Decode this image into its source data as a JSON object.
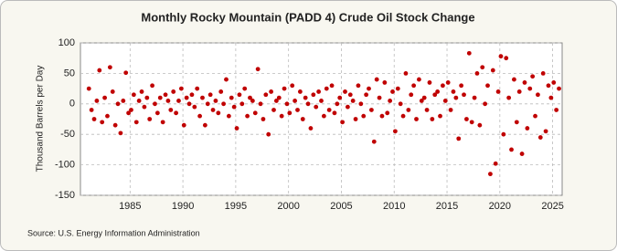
{
  "chart_data": {
    "type": "scatter",
    "title": "Monthly Rocky Mountain (PADD 4) Crude Oil Stock Change",
    "y_label": "Thousand Barrels per Day",
    "source": "Source: U.S. Energy Information Administration",
    "color": "#c00000",
    "grid": true,
    "xlim": [
      1980.3,
      2025.9
    ],
    "ylim": [
      -150,
      100
    ],
    "xticks": [
      1985,
      1990,
      1995,
      2000,
      2005,
      2010,
      2015,
      2020,
      2025
    ],
    "yticks": [
      100,
      50,
      0,
      -50,
      -100,
      -150
    ],
    "x": [
      1981.1,
      1981.35,
      1981.6,
      1981.85,
      1982.1,
      1982.35,
      1982.6,
      1982.85,
      1983.1,
      1983.35,
      1983.6,
      1983.85,
      1984.1,
      1984.35,
      1984.6,
      1984.85,
      1985.1,
      1985.35,
      1985.6,
      1985.85,
      1986.1,
      1986.35,
      1986.6,
      1986.85,
      1987.1,
      1987.35,
      1987.6,
      1987.85,
      1988.1,
      1988.35,
      1988.6,
      1988.85,
      1989.1,
      1989.35,
      1989.6,
      1989.85,
      1990.1,
      1990.35,
      1990.6,
      1990.85,
      1991.1,
      1991.35,
      1991.6,
      1991.85,
      1992.1,
      1992.35,
      1992.6,
      1992.85,
      1993.1,
      1993.35,
      1993.6,
      1993.85,
      1994.1,
      1994.35,
      1994.6,
      1994.85,
      1995.1,
      1995.35,
      1995.6,
      1995.85,
      1996.1,
      1996.35,
      1996.6,
      1996.85,
      1997.1,
      1997.35,
      1997.6,
      1997.85,
      1998.1,
      1998.35,
      1998.6,
      1998.85,
      1999.1,
      1999.35,
      1999.6,
      1999.85,
      2000.1,
      2000.35,
      2000.6,
      2000.85,
      2001.1,
      2001.35,
      2001.6,
      2001.85,
      2002.1,
      2002.35,
      2002.6,
      2002.85,
      2003.1,
      2003.35,
      2003.6,
      2003.85,
      2004.1,
      2004.35,
      2004.6,
      2004.85,
      2005.1,
      2005.35,
      2005.6,
      2005.85,
      2006.1,
      2006.35,
      2006.6,
      2006.85,
      2007.1,
      2007.35,
      2007.6,
      2007.85,
      2008.1,
      2008.35,
      2008.6,
      2008.85,
      2009.1,
      2009.35,
      2009.6,
      2009.85,
      2010.1,
      2010.35,
      2010.6,
      2010.85,
      2011.1,
      2011.35,
      2011.6,
      2011.85,
      2012.1,
      2012.35,
      2012.6,
      2012.85,
      2013.1,
      2013.35,
      2013.6,
      2013.85,
      2014.1,
      2014.35,
      2014.6,
      2014.85,
      2015.1,
      2015.35,
      2015.6,
      2015.85,
      2016.1,
      2016.35,
      2016.6,
      2016.85,
      2017.1,
      2017.35,
      2017.6,
      2017.85,
      2018.1,
      2018.35,
      2018.6,
      2018.85,
      2019.1,
      2019.35,
      2019.6,
      2019.85,
      2020.1,
      2020.35,
      2020.6,
      2020.85,
      2021.1,
      2021.35,
      2021.6,
      2021.85,
      2022.1,
      2022.35,
      2022.6,
      2022.85,
      2023.1,
      2023.35,
      2023.6,
      2023.85,
      2024.1,
      2024.35,
      2024.6,
      2024.85,
      2025.1,
      2025.35,
      2025.6
    ],
    "values": [
      25,
      -10,
      -25,
      5,
      55,
      -30,
      10,
      -20,
      60,
      20,
      -35,
      0,
      -48,
      5,
      51,
      -15,
      -10,
      15,
      -30,
      5,
      20,
      -5,
      10,
      -25,
      30,
      0,
      -15,
      10,
      -30,
      15,
      5,
      -10,
      20,
      -15,
      5,
      25,
      -35,
      10,
      0,
      15,
      -5,
      25,
      -20,
      10,
      -35,
      0,
      15,
      -10,
      5,
      -15,
      20,
      0,
      40,
      -20,
      10,
      -5,
      -40,
      15,
      0,
      25,
      -20,
      10,
      5,
      -15,
      57,
      0,
      -25,
      15,
      -50,
      20,
      -10,
      5,
      10,
      -20,
      25,
      0,
      -15,
      30,
      5,
      -10,
      20,
      -25,
      10,
      0,
      -40,
      15,
      -5,
      20,
      5,
      -20,
      25,
      -10,
      30,
      -15,
      0,
      10,
      -30,
      20,
      -5,
      15,
      5,
      -25,
      30,
      0,
      -20,
      15,
      25,
      -10,
      -62,
      40,
      10,
      -20,
      35,
      -15,
      5,
      20,
      -45,
      25,
      0,
      -20,
      50,
      -10,
      15,
      30,
      -25,
      40,
      5,
      10,
      -10,
      35,
      -25,
      15,
      20,
      -20,
      30,
      5,
      35,
      -10,
      20,
      10,
      -57,
      30,
      15,
      -25,
      83,
      -30,
      10,
      50,
      -35,
      60,
      0,
      30,
      -115,
      55,
      -98,
      20,
      78,
      -50,
      75,
      10,
      -75,
      40,
      -30,
      20,
      -82,
      35,
      -40,
      25,
      45,
      -20,
      15,
      -55,
      50,
      -45,
      30,
      10,
      35,
      -10,
      25
    ]
  }
}
